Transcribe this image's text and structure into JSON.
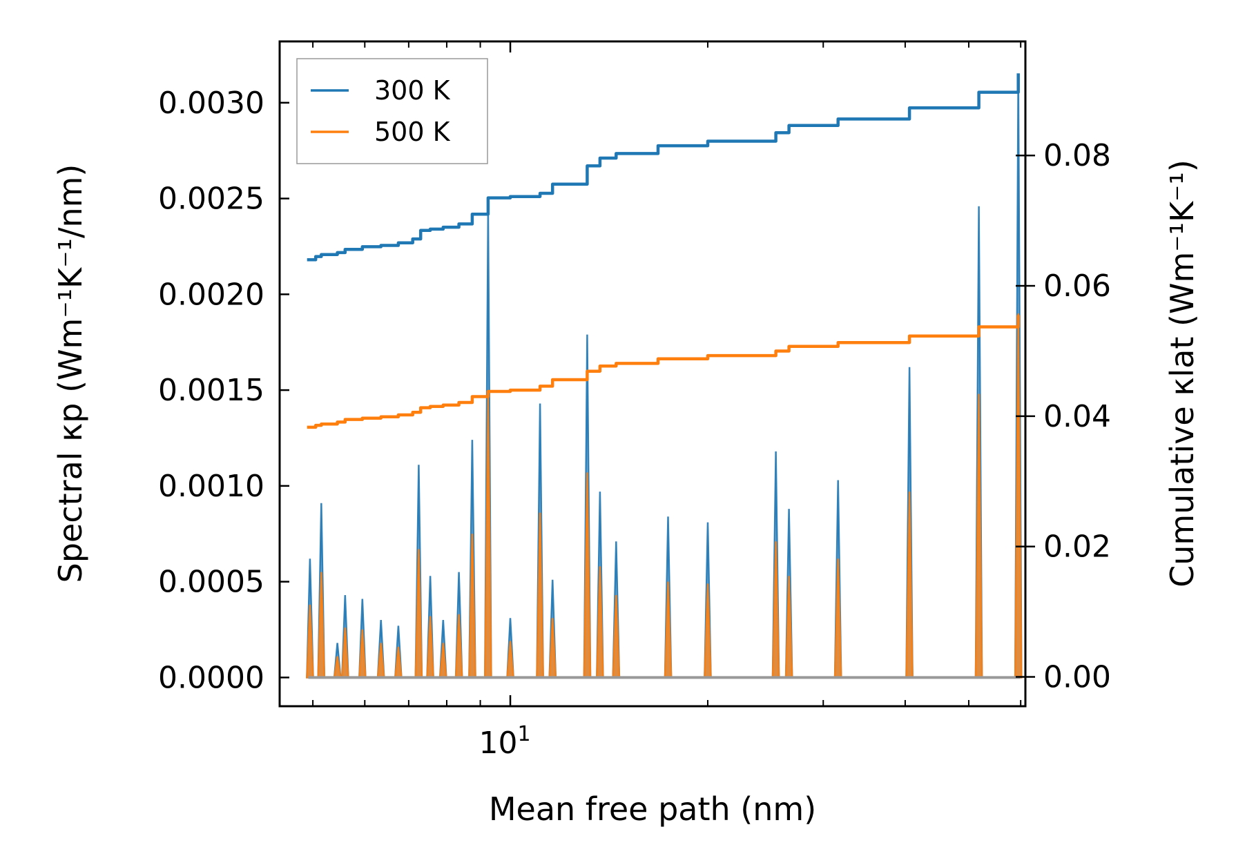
{
  "chart_data": {
    "type": "line",
    "title": "",
    "xlabel": "Mean free path (nm)",
    "ylabel": "Spectral κp (Wm⁻¹K⁻¹/nm)",
    "ylabel_right": "Cumulative κlat (Wm⁻¹K⁻¹)",
    "x_scale": "log",
    "xlim": [
      4.45,
      61
    ],
    "ylim": [
      -0.00015,
      0.00332
    ],
    "ylim_right": [
      -0.0045,
      0.0975
    ],
    "x_ticks": [
      {
        "value": 10,
        "base": "10",
        "exp": "1"
      }
    ],
    "y_ticks": [
      {
        "value": 0.0,
        "label": "0.0000"
      },
      {
        "value": 0.0005,
        "label": "0.0005"
      },
      {
        "value": 0.001,
        "label": "0.0010"
      },
      {
        "value": 0.0015,
        "label": "0.0015"
      },
      {
        "value": 0.002,
        "label": "0.0020"
      },
      {
        "value": 0.0025,
        "label": "0.0025"
      },
      {
        "value": 0.003,
        "label": "0.0030"
      }
    ],
    "y_ticks_right": [
      {
        "value": 0.0,
        "label": "0.00"
      },
      {
        "value": 0.02,
        "label": "0.02"
      },
      {
        "value": 0.04,
        "label": "0.04"
      },
      {
        "value": 0.06,
        "label": "0.06"
      },
      {
        "value": 0.08,
        "label": "0.08"
      }
    ],
    "legend": {
      "position": "top-left"
    },
    "spectral": {
      "peaks": [
        {
          "x": 4.95,
          "a": 0.00062,
          "b": 0.00038
        },
        {
          "x": 5.15,
          "a": 0.00091,
          "b": 0.00055
        },
        {
          "x": 5.45,
          "a": 0.00018,
          "b": 0.00011
        },
        {
          "x": 5.6,
          "a": 0.00043,
          "b": 0.00026
        },
        {
          "x": 5.95,
          "a": 0.00041,
          "b": 0.00025
        },
        {
          "x": 6.35,
          "a": 0.0003,
          "b": 0.00018
        },
        {
          "x": 6.75,
          "a": 0.00027,
          "b": 0.00016
        },
        {
          "x": 7.25,
          "a": 0.00111,
          "b": 0.00067
        },
        {
          "x": 7.55,
          "a": 0.00053,
          "b": 0.00032
        },
        {
          "x": 7.9,
          "a": 0.0003,
          "b": 0.00018
        },
        {
          "x": 8.35,
          "a": 0.00055,
          "b": 0.00033
        },
        {
          "x": 8.75,
          "a": 0.00124,
          "b": 0.00075
        },
        {
          "x": 9.25,
          "a": 0.00244,
          "b": 0.00146
        },
        {
          "x": 10.0,
          "a": 0.00031,
          "b": 0.00019
        },
        {
          "x": 11.1,
          "a": 0.00143,
          "b": 0.00086
        },
        {
          "x": 11.6,
          "a": 0.00051,
          "b": 0.00031
        },
        {
          "x": 13.1,
          "a": 0.00179,
          "b": 0.00107
        },
        {
          "x": 13.7,
          "a": 0.00097,
          "b": 0.00058
        },
        {
          "x": 14.5,
          "a": 0.00071,
          "b": 0.00043
        },
        {
          "x": 17.4,
          "a": 0.00084,
          "b": 0.0005
        },
        {
          "x": 20.0,
          "a": 0.00081,
          "b": 0.00049
        },
        {
          "x": 25.4,
          "a": 0.00118,
          "b": 0.00071
        },
        {
          "x": 26.6,
          "a": 0.00088,
          "b": 0.00053
        },
        {
          "x": 31.6,
          "a": 0.00103,
          "b": 0.00062
        },
        {
          "x": 40.6,
          "a": 0.00162,
          "b": 0.00097
        },
        {
          "x": 51.8,
          "a": 0.00246,
          "b": 0.00148
        },
        {
          "x": 59.5,
          "a": 0.00315,
          "b": 0.0019
        }
      ]
    },
    "series": [
      {
        "name": "300 K",
        "color": "#1f77b4",
        "x": [
          4.9,
          5.05,
          5.15,
          5.45,
          5.6,
          5.95,
          6.35,
          6.75,
          7.1,
          7.3,
          7.55,
          7.9,
          8.35,
          8.75,
          9.25,
          10.0,
          11.1,
          11.6,
          13.1,
          13.7,
          14.5,
          16.8,
          20.0,
          25.4,
          26.6,
          31.6,
          40.6,
          51.8,
          59.5
        ],
        "values": [
          0.064,
          0.0645,
          0.0648,
          0.0651,
          0.0656,
          0.066,
          0.0662,
          0.0666,
          0.0672,
          0.0685,
          0.0687,
          0.069,
          0.0695,
          0.071,
          0.0735,
          0.0737,
          0.0742,
          0.0756,
          0.0784,
          0.0796,
          0.0803,
          0.0815,
          0.0822,
          0.0835,
          0.0846,
          0.0856,
          0.0873,
          0.0897,
          0.0926
        ]
      },
      {
        "name": "500 K",
        "color": "#ff7f0e",
        "x": [
          4.9,
          5.05,
          5.15,
          5.45,
          5.6,
          5.95,
          6.35,
          6.75,
          7.1,
          7.3,
          7.55,
          7.9,
          8.35,
          8.75,
          9.25,
          10.0,
          11.1,
          11.6,
          13.1,
          13.7,
          14.5,
          16.8,
          20.0,
          25.4,
          26.6,
          31.6,
          40.6,
          51.8,
          59.5
        ],
        "values": [
          0.0383,
          0.0386,
          0.0388,
          0.0391,
          0.0395,
          0.0397,
          0.0399,
          0.0402,
          0.0406,
          0.0413,
          0.0415,
          0.0417,
          0.0421,
          0.043,
          0.0438,
          0.044,
          0.0446,
          0.0456,
          0.0469,
          0.0477,
          0.0481,
          0.0488,
          0.0493,
          0.05,
          0.0507,
          0.0513,
          0.0523,
          0.0537,
          0.0555
        ]
      }
    ]
  }
}
